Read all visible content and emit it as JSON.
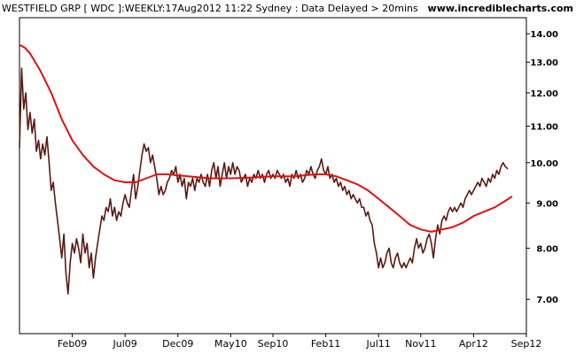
{
  "header": {
    "title": "WESTFIELD GRP [ WDC ]:WEEKLY:17Aug2012 11:22 Sydney : Data Delayed > 20mins",
    "brand": "www.incrediblecharts.com"
  },
  "chart_data": {
    "type": "line",
    "title": "WESTFIELD GRP [ WDC ]:WEEKLY:17Aug2012 11:22 Sydney : Data Delayed > 20mins",
    "xlabel": "",
    "ylabel": "",
    "x_unit": "months since Sep 2008",
    "xlim": [
      0,
      48
    ],
    "ylim": [
      6.4,
      14.6
    ],
    "y_scale": "log",
    "grid": false,
    "legend": "none",
    "x_ticks": [
      {
        "label": "Feb09",
        "x": 5
      },
      {
        "label": "Jul09",
        "x": 10
      },
      {
        "label": "Dec09",
        "x": 15
      },
      {
        "label": "May10",
        "x": 20
      },
      {
        "label": "Sep10",
        "x": 24
      },
      {
        "label": "Feb11",
        "x": 29
      },
      {
        "label": "Jul11",
        "x": 34
      },
      {
        "label": "Nov11",
        "x": 38
      },
      {
        "label": "Apr12",
        "x": 43
      },
      {
        "label": "Sep12",
        "x": 48
      }
    ],
    "y_ticks": [
      "14.00",
      "13.00",
      "12.00",
      "11.00",
      "10.00",
      "9.00",
      "8.00",
      "7.00"
    ],
    "y_tick_values": [
      14,
      13,
      12,
      11,
      10,
      9,
      8,
      7
    ],
    "series": [
      {
        "color": "#5a1a14",
        "points": [
          [
            0.0,
            10.4
          ],
          [
            0.2,
            12.8
          ],
          [
            0.4,
            11.5
          ],
          [
            0.6,
            12.0
          ],
          [
            0.8,
            10.9
          ],
          [
            1.0,
            11.4
          ],
          [
            1.2,
            10.8
          ],
          [
            1.4,
            11.2
          ],
          [
            1.6,
            10.3
          ],
          [
            1.8,
            10.6
          ],
          [
            2.0,
            10.1
          ],
          [
            2.2,
            10.5
          ],
          [
            2.4,
            10.2
          ],
          [
            2.6,
            10.7
          ],
          [
            2.8,
            10.0
          ],
          [
            3.0,
            9.3
          ],
          [
            3.2,
            9.5
          ],
          [
            3.4,
            9.0
          ],
          [
            3.6,
            8.6
          ],
          [
            3.8,
            8.2
          ],
          [
            4.0,
            7.8
          ],
          [
            4.2,
            8.3
          ],
          [
            4.4,
            7.5
          ],
          [
            4.6,
            7.1
          ],
          [
            4.8,
            7.7
          ],
          [
            5.0,
            8.1
          ],
          [
            5.2,
            7.9
          ],
          [
            5.4,
            8.2
          ],
          [
            5.6,
            8.0
          ],
          [
            5.8,
            7.7
          ],
          [
            6.0,
            8.3
          ],
          [
            6.2,
            7.9
          ],
          [
            6.4,
            8.1
          ],
          [
            6.6,
            7.6
          ],
          [
            6.8,
            7.9
          ],
          [
            7.0,
            7.4
          ],
          [
            7.2,
            7.8
          ],
          [
            7.4,
            8.1
          ],
          [
            7.6,
            8.4
          ],
          [
            7.8,
            8.7
          ],
          [
            8.0,
            8.6
          ],
          [
            8.2,
            8.9
          ],
          [
            8.4,
            8.8
          ],
          [
            8.6,
            9.1
          ],
          [
            8.8,
            8.7
          ],
          [
            9.0,
            8.9
          ],
          [
            9.2,
            8.6
          ],
          [
            9.4,
            8.8
          ],
          [
            9.6,
            8.7
          ],
          [
            9.8,
            9.0
          ],
          [
            10.0,
            9.2
          ],
          [
            10.2,
            9.0
          ],
          [
            10.4,
            8.9
          ],
          [
            10.6,
            9.3
          ],
          [
            10.8,
            9.7
          ],
          [
            11.0,
            9.1
          ],
          [
            11.2,
            9.4
          ],
          [
            11.4,
            9.8
          ],
          [
            11.6,
            10.2
          ],
          [
            11.8,
            10.5
          ],
          [
            12.0,
            10.3
          ],
          [
            12.2,
            10.4
          ],
          [
            12.4,
            10.0
          ],
          [
            12.6,
            10.2
          ],
          [
            12.8,
            9.9
          ],
          [
            13.0,
            9.6
          ],
          [
            13.2,
            9.2
          ],
          [
            13.4,
            9.4
          ],
          [
            13.6,
            9.2
          ],
          [
            13.8,
            9.3
          ],
          [
            14.0,
            9.5
          ],
          [
            14.2,
            9.6
          ],
          [
            14.4,
            9.8
          ],
          [
            14.6,
            9.7
          ],
          [
            14.8,
            9.9
          ],
          [
            15.0,
            9.5
          ],
          [
            15.2,
            9.7
          ],
          [
            15.4,
            9.4
          ],
          [
            15.6,
            9.6
          ],
          [
            15.8,
            9.1
          ],
          [
            16.0,
            9.5
          ],
          [
            16.2,
            9.4
          ],
          [
            16.4,
            9.6
          ],
          [
            16.6,
            9.3
          ],
          [
            16.8,
            9.6
          ],
          [
            17.0,
            9.5
          ],
          [
            17.2,
            9.7
          ],
          [
            17.4,
            9.5
          ],
          [
            17.6,
            9.4
          ],
          [
            17.8,
            9.7
          ],
          [
            18.0,
            9.4
          ],
          [
            18.2,
            9.8
          ],
          [
            18.4,
            10.0
          ],
          [
            18.6,
            9.6
          ],
          [
            18.8,
            9.9
          ],
          [
            19.0,
            9.4
          ],
          [
            19.2,
            9.7
          ],
          [
            19.4,
            10.0
          ],
          [
            19.6,
            9.6
          ],
          [
            19.8,
            9.9
          ],
          [
            20.0,
            9.7
          ],
          [
            20.2,
            10.0
          ],
          [
            20.4,
            9.7
          ],
          [
            20.6,
            9.9
          ],
          [
            20.8,
            9.8
          ],
          [
            21.0,
            9.5
          ],
          [
            21.2,
            9.6
          ],
          [
            21.4,
            9.7
          ],
          [
            21.6,
            9.4
          ],
          [
            21.8,
            9.6
          ],
          [
            22.0,
            9.5
          ],
          [
            22.2,
            9.7
          ],
          [
            22.4,
            9.6
          ],
          [
            22.6,
            9.8
          ],
          [
            22.8,
            9.6
          ],
          [
            23.0,
            9.7
          ],
          [
            23.2,
            9.5
          ],
          [
            23.4,
            9.7
          ],
          [
            23.6,
            9.8
          ],
          [
            23.8,
            9.6
          ],
          [
            24.0,
            9.7
          ],
          [
            24.2,
            9.6
          ],
          [
            24.4,
            9.8
          ],
          [
            24.6,
            9.7
          ],
          [
            24.8,
            9.6
          ],
          [
            25.0,
            9.7
          ],
          [
            25.2,
            9.5
          ],
          [
            25.4,
            9.6
          ],
          [
            25.6,
            9.4
          ],
          [
            25.8,
            9.7
          ],
          [
            26.0,
            9.6
          ],
          [
            26.2,
            9.8
          ],
          [
            26.4,
            9.6
          ],
          [
            26.6,
            9.7
          ],
          [
            26.8,
            9.5
          ],
          [
            27.0,
            9.6
          ],
          [
            27.2,
            9.8
          ],
          [
            27.4,
            9.7
          ],
          [
            27.6,
            9.9
          ],
          [
            27.8,
            9.7
          ],
          [
            28.0,
            9.6
          ],
          [
            28.2,
            9.8
          ],
          [
            28.4,
            9.9
          ],
          [
            28.6,
            10.1
          ],
          [
            28.8,
            9.8
          ],
          [
            29.0,
            9.7
          ],
          [
            29.2,
            9.9
          ],
          [
            29.4,
            9.6
          ],
          [
            29.6,
            9.7
          ],
          [
            29.8,
            9.5
          ],
          [
            30.0,
            9.6
          ],
          [
            30.2,
            9.4
          ],
          [
            30.4,
            9.5
          ],
          [
            30.6,
            9.3
          ],
          [
            30.8,
            9.4
          ],
          [
            31.0,
            9.2
          ],
          [
            31.2,
            9.3
          ],
          [
            31.4,
            9.1
          ],
          [
            31.6,
            9.2
          ],
          [
            31.8,
            9.1
          ],
          [
            32.0,
            9.0
          ],
          [
            32.2,
            9.1
          ],
          [
            32.4,
            8.9
          ],
          [
            32.6,
            8.9
          ],
          [
            32.8,
            8.7
          ],
          [
            33.0,
            8.8
          ],
          [
            33.2,
            8.6
          ],
          [
            33.4,
            8.5
          ],
          [
            33.6,
            8.1
          ],
          [
            33.8,
            7.9
          ],
          [
            34.0,
            7.6
          ],
          [
            34.2,
            7.8
          ],
          [
            34.4,
            7.6
          ],
          [
            34.6,
            7.7
          ],
          [
            34.8,
            7.9
          ],
          [
            35.0,
            8.0
          ],
          [
            35.2,
            7.7
          ],
          [
            35.4,
            7.6
          ],
          [
            35.6,
            7.8
          ],
          [
            35.8,
            7.9
          ],
          [
            36.0,
            7.7
          ],
          [
            36.2,
            7.6
          ],
          [
            36.4,
            7.7
          ],
          [
            36.6,
            7.6
          ],
          [
            36.8,
            7.7
          ],
          [
            37.0,
            7.8
          ],
          [
            37.2,
            7.7
          ],
          [
            37.4,
            8.0
          ],
          [
            37.6,
            8.2
          ],
          [
            37.8,
            8.0
          ],
          [
            38.0,
            8.1
          ],
          [
            38.2,
            7.9
          ],
          [
            38.4,
            8.0
          ],
          [
            38.6,
            8.2
          ],
          [
            38.8,
            8.3
          ],
          [
            39.0,
            8.1
          ],
          [
            39.2,
            7.8
          ],
          [
            39.4,
            8.2
          ],
          [
            39.6,
            8.5
          ],
          [
            39.8,
            8.3
          ],
          [
            40.0,
            8.6
          ],
          [
            40.2,
            8.7
          ],
          [
            40.4,
            8.6
          ],
          [
            40.6,
            8.8
          ],
          [
            40.8,
            8.9
          ],
          [
            41.0,
            8.8
          ],
          [
            41.2,
            8.9
          ],
          [
            41.4,
            8.8
          ],
          [
            41.6,
            8.9
          ],
          [
            41.8,
            9.0
          ],
          [
            42.0,
            8.9
          ],
          [
            42.2,
            9.1
          ],
          [
            42.4,
            9.2
          ],
          [
            42.6,
            9.3
          ],
          [
            42.8,
            9.2
          ],
          [
            43.0,
            9.3
          ],
          [
            43.2,
            9.4
          ],
          [
            43.4,
            9.5
          ],
          [
            43.6,
            9.4
          ],
          [
            43.8,
            9.6
          ],
          [
            44.0,
            9.5
          ],
          [
            44.2,
            9.4
          ],
          [
            44.4,
            9.6
          ],
          [
            44.6,
            9.5
          ],
          [
            44.8,
            9.7
          ],
          [
            45.0,
            9.6
          ],
          [
            45.2,
            9.8
          ],
          [
            45.4,
            9.7
          ],
          [
            45.6,
            9.9
          ],
          [
            45.8,
            10.0
          ],
          [
            46.0,
            9.9
          ],
          [
            46.2,
            9.85
          ]
        ]
      },
      {
        "color": "#e01010",
        "points": [
          [
            0,
            13.6
          ],
          [
            0.5,
            13.5
          ],
          [
            1,
            13.3
          ],
          [
            2,
            12.7
          ],
          [
            3,
            12.0
          ],
          [
            4,
            11.2
          ],
          [
            5,
            10.6
          ],
          [
            6,
            10.2
          ],
          [
            7,
            9.9
          ],
          [
            8,
            9.7
          ],
          [
            9,
            9.55
          ],
          [
            10,
            9.5
          ],
          [
            11,
            9.5
          ],
          [
            12,
            9.6
          ],
          [
            13,
            9.7
          ],
          [
            14,
            9.7
          ],
          [
            16,
            9.65
          ],
          [
            18,
            9.6
          ],
          [
            20,
            9.6
          ],
          [
            22,
            9.62
          ],
          [
            24,
            9.65
          ],
          [
            26,
            9.65
          ],
          [
            28,
            9.7
          ],
          [
            29,
            9.7
          ],
          [
            30,
            9.65
          ],
          [
            31,
            9.55
          ],
          [
            32,
            9.45
          ],
          [
            33,
            9.3
          ],
          [
            34,
            9.1
          ],
          [
            35,
            8.9
          ],
          [
            36,
            8.7
          ],
          [
            37,
            8.5
          ],
          [
            38,
            8.4
          ],
          [
            39,
            8.35
          ],
          [
            40,
            8.4
          ],
          [
            41,
            8.45
          ],
          [
            42,
            8.55
          ],
          [
            43,
            8.7
          ],
          [
            44,
            8.8
          ],
          [
            45,
            8.9
          ],
          [
            46,
            9.05
          ],
          [
            46.6,
            9.15
          ]
        ]
      }
    ]
  }
}
